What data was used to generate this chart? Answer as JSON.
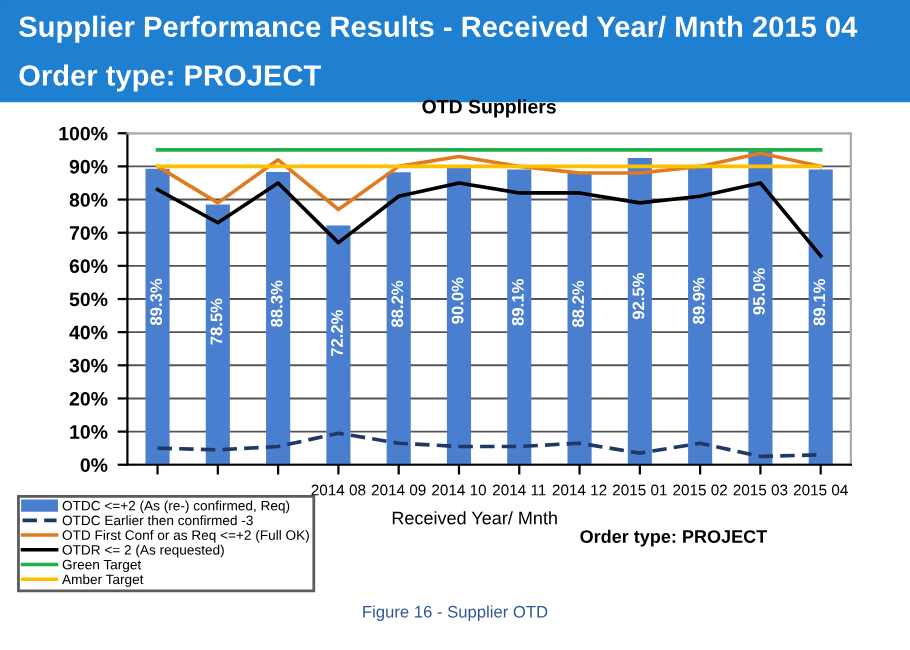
{
  "chart_data": {
    "type": "bar",
    "title": "Supplier Performance Results - Received Year/ Mnth 2015 04",
    "subtitle": "Order type: PROJECT",
    "xlabel": "Received Year/ Mnth",
    "annotations": [
      "OTD Suppliers",
      "Order type: PROJECT",
      "Figure 16 - Supplier OTD"
    ],
    "categories": [
      null,
      null,
      null,
      "2014 08",
      "2014 09",
      "2014 10",
      "2014 11",
      "2014 12",
      "2015 01",
      "2015 02",
      "2015 03",
      "2015 04"
    ],
    "series": [
      {
        "name": "OTDC <=+2 (As (re-) confirmed, Req)",
        "color": "#4a7fcf",
        "values": [
          89.3,
          78.5,
          88.3,
          72.2,
          88.2,
          90.0,
          89.1,
          88.2,
          92.5,
          89.9,
          95.0,
          89.1
        ],
        "value_labels": [
          "89.3%",
          "78.5%",
          "88.3%",
          "72.2%",
          "88.2%",
          "90.0%",
          "89.1%",
          "88.2%",
          "92.5%",
          "89.9%",
          "95.0%",
          "89.1%"
        ]
      },
      {
        "name": "OTDC Earlier then confirmed -3",
        "type": "line",
        "line_style": "dashed",
        "color": "#1f3864",
        "values": [
          5,
          4.5,
          5.5,
          9.5,
          6.5,
          5.5,
          5.5,
          6.5,
          3.5,
          6.5,
          2.5,
          3
        ]
      },
      {
        "name": "OTD First Conf or as Req <=+2 (Full OK)",
        "type": "line",
        "color": "#e07b20",
        "values": [
          90,
          79,
          92,
          77,
          90,
          93,
          90,
          88,
          88,
          90,
          94,
          90
        ]
      },
      {
        "name": "OTDR <= 2 (As requested)",
        "type": "line",
        "color": "#000000",
        "values": [
          83,
          73,
          85,
          67,
          81,
          85,
          82,
          82,
          79,
          81,
          85,
          63
        ]
      },
      {
        "name": "Green Target",
        "type": "line",
        "color": "#22b04c",
        "values": [
          95,
          95,
          95,
          95,
          95,
          95,
          95,
          95,
          95,
          95,
          95,
          95
        ]
      },
      {
        "name": "Amber Target",
        "type": "line",
        "color": "#ffc000",
        "values": [
          90,
          90,
          90,
          90,
          90,
          90,
          90,
          90,
          90,
          90,
          90,
          90
        ]
      }
    ],
    "ylim": [
      0,
      100
    ],
    "yticks": [
      {
        "value": 0,
        "label": "0%"
      },
      {
        "value": 10,
        "label": "10%"
      },
      {
        "value": 20,
        "label": "20%"
      },
      {
        "value": 30,
        "label": "30%"
      },
      {
        "value": 40,
        "label": "40%"
      },
      {
        "value": 50,
        "label": "50%"
      },
      {
        "value": 60,
        "label": "60%"
      },
      {
        "value": 70,
        "label": "70%"
      },
      {
        "value": 80,
        "label": "80%"
      },
      {
        "value": 90,
        "label": "90%"
      },
      {
        "value": 100,
        "label": "100%"
      }
    ],
    "grid": "y",
    "legend": "bottom left"
  }
}
